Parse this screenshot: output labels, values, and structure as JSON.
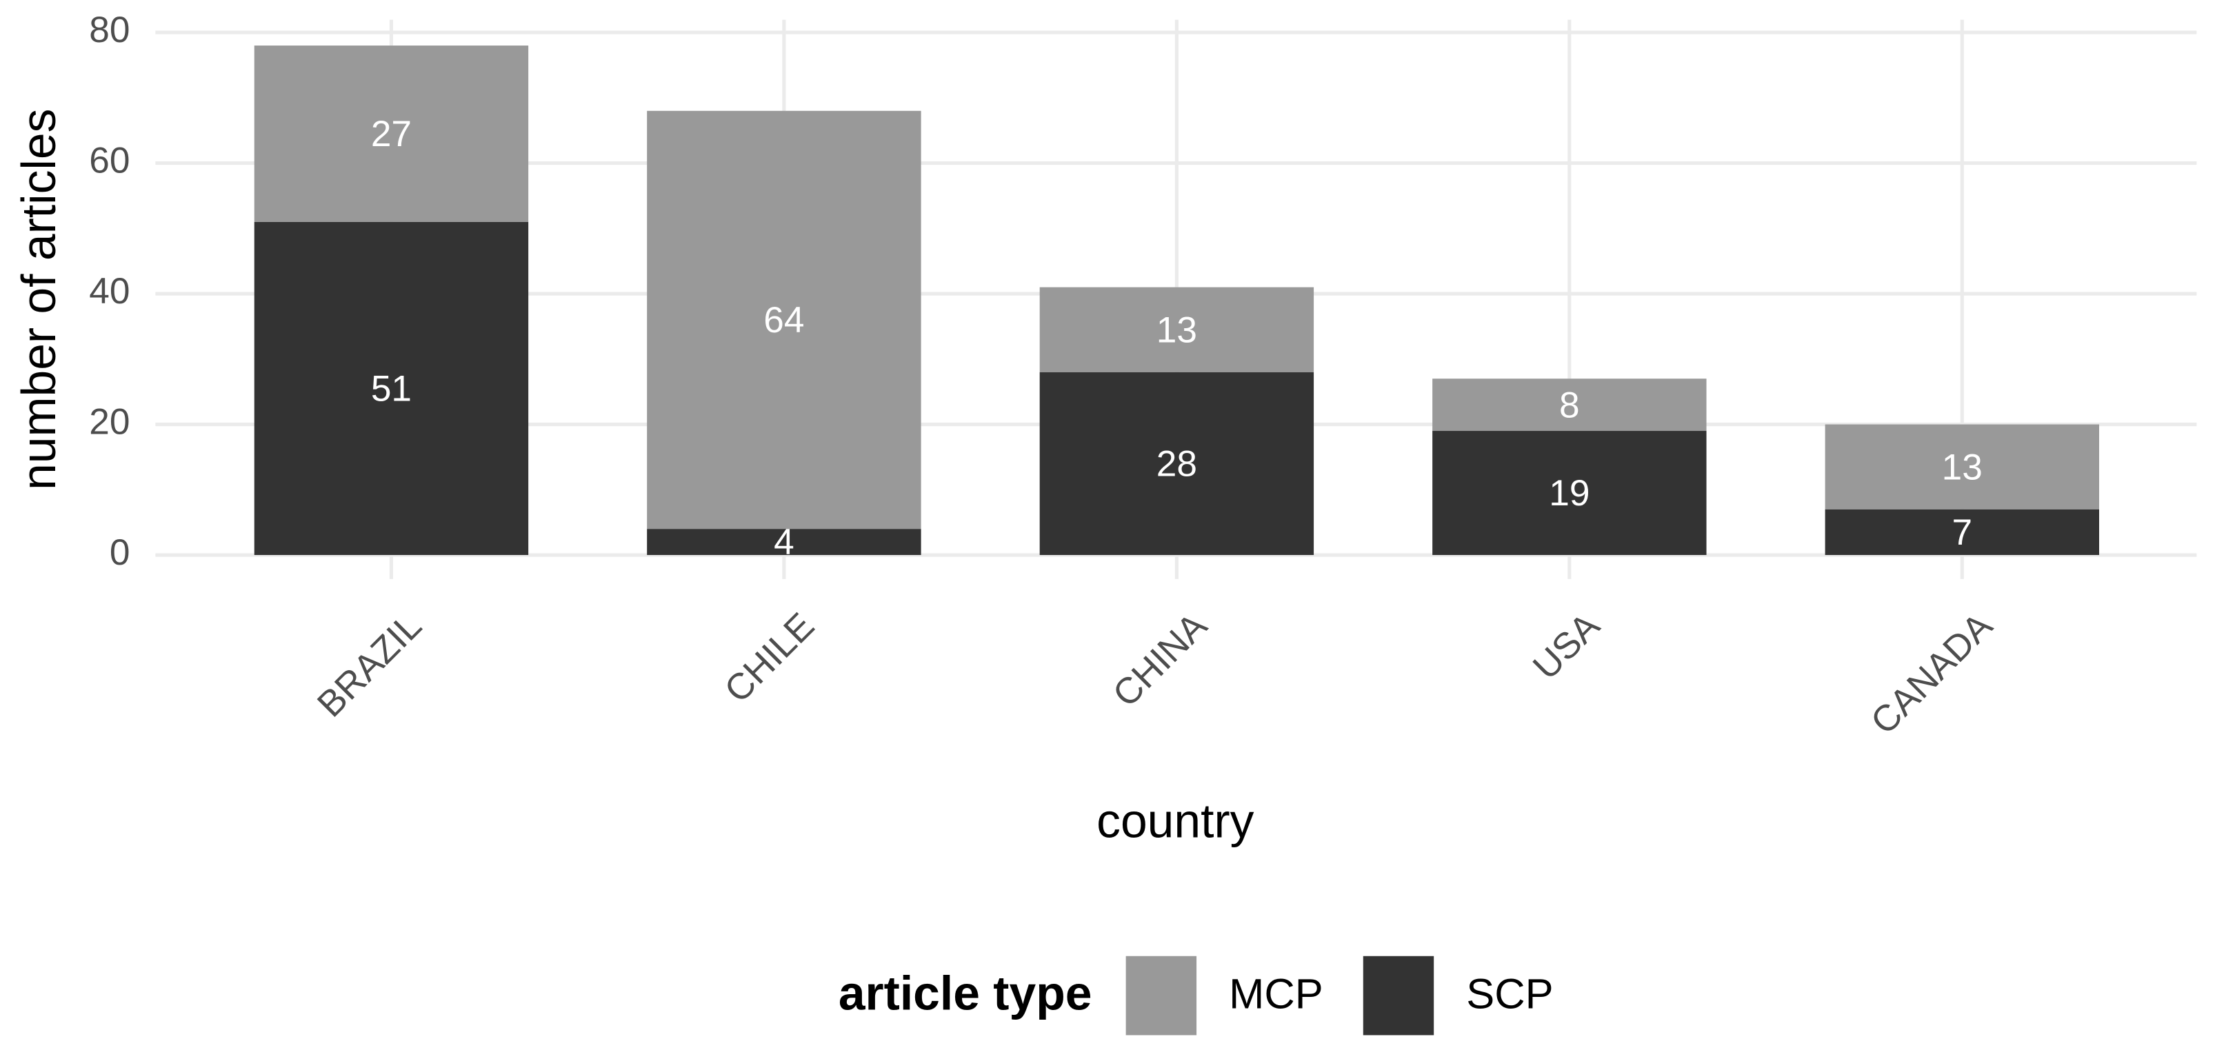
{
  "chart_data": {
    "type": "stacked_bar",
    "x_label": "country",
    "y_label": "number of articles",
    "categories": [
      "BRAZIL",
      "CHILE",
      "CHINA",
      "USA",
      "CANADA"
    ],
    "series": [
      {
        "name": "MCP",
        "color": "#999999",
        "values": [
          27,
          64,
          13,
          8,
          13
        ]
      },
      {
        "name": "SCP",
        "color": "#333333",
        "values": [
          51,
          4,
          28,
          19,
          7
        ]
      }
    ],
    "ylim": [
      0,
      80
    ],
    "yticks": [
      0,
      20,
      40,
      60,
      80
    ],
    "grid": true,
    "legend_title": "article type",
    "legend_position": "bottom"
  }
}
